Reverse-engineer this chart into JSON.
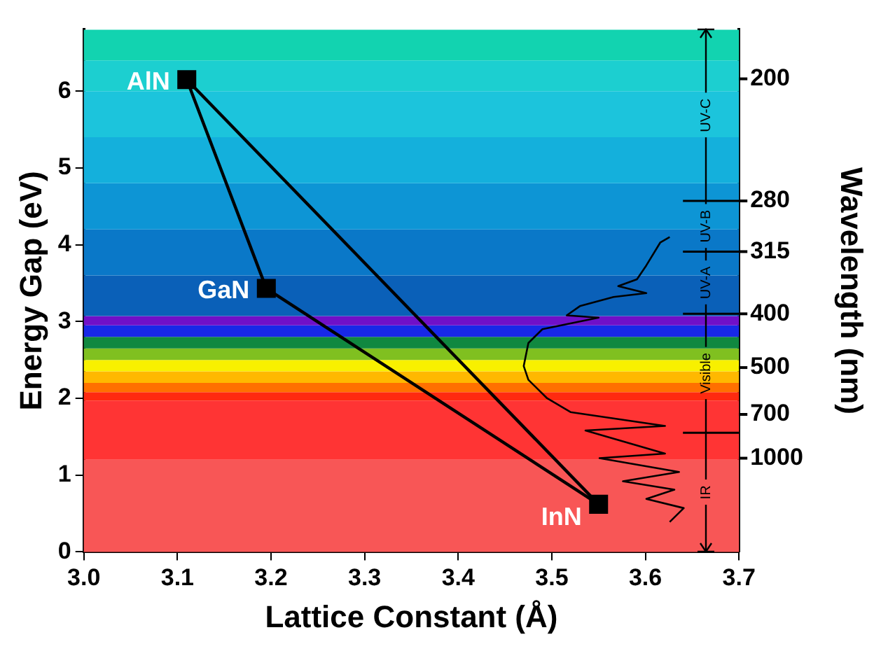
{
  "chart_data": {
    "type": "line",
    "xlabel": "Lattice Constant (Å)",
    "ylabel": "Energy Gap (eV)",
    "y2label": "Wavelength (nm)",
    "xlim": [
      3.0,
      3.7
    ],
    "xticks": [
      {
        "value": 3,
        "label": "3.0"
      },
      3.1,
      3.2,
      3.3,
      3.4,
      3.5,
      3.6,
      3.7
    ],
    "ylim": [
      0,
      6.8
    ],
    "yticks": [
      0,
      1,
      2,
      3,
      4,
      5,
      6
    ],
    "series": [
      {
        "type": "scatter",
        "color": "#000000",
        "marker": "square",
        "x": [
          3.11,
          3.195,
          3.55
        ],
        "values": [
          6.15,
          3.43,
          0.62
        ]
      },
      {
        "color": "#000000",
        "marker": "none",
        "x": [
          3.11,
          3.195,
          3.55
        ],
        "values": [
          6.15,
          3.43,
          0.62
        ]
      },
      {
        "color": "#000000",
        "marker": "none",
        "x": [
          3.11,
          3.55
        ],
        "values": [
          6.15,
          0.62
        ]
      },
      {
        "color": "#000000",
        "marker": "none",
        "x": [
          3.626,
          3.616,
          3.601,
          3.591,
          3.571,
          3.601,
          3.566,
          3.53,
          3.516,
          3.55,
          3.49,
          3.475,
          3.47,
          3.475,
          3.495,
          3.52,
          3.621,
          3.536,
          3.621,
          3.551,
          3.636,
          3.576,
          3.631,
          3.601,
          3.641,
          3.626
        ],
        "values": [
          4.1,
          4.03,
          3.73,
          3.55,
          3.46,
          3.37,
          3.32,
          3.2,
          3.08,
          3.05,
          2.9,
          2.72,
          2.42,
          2.24,
          2.0,
          1.82,
          1.64,
          1.58,
          1.28,
          1.22,
          1.04,
          0.92,
          0.81,
          0.69,
          0.57,
          0.39
        ]
      }
    ],
    "annotations": [
      {
        "text": "AlN",
        "x": 3.11,
        "y": 6.15
      },
      {
        "text": "GaN",
        "x": 3.195,
        "y": 3.43
      },
      {
        "text": "InN",
        "x": 3.55,
        "y": 0.62
      },
      {
        "text": "200",
        "x": 3.7,
        "y": 6.16
      },
      {
        "text": "280",
        "x": 3.7,
        "y": 4.57
      },
      {
        "text": "315",
        "x": 3.7,
        "y": 3.91
      },
      {
        "text": "400",
        "x": 3.7,
        "y": 3.1
      },
      {
        "text": "500",
        "x": 3.7,
        "y": 2.4
      },
      {
        "text": "700",
        "x": 3.7,
        "y": 1.79
      },
      {
        "text": "1000",
        "x": 3.7,
        "y": 1.22
      },
      {
        "text": "UV-C",
        "x": 3.665,
        "y": 4.57
      },
      {
        "text": "UV-B",
        "x": 3.665,
        "y": 3.91
      },
      {
        "text": "UV-A",
        "x": 3.665,
        "y": 3.1
      },
      {
        "text": "Visible",
        "x": 3.665,
        "y": 1.55
      },
      {
        "text": "IR",
        "x": 3.665,
        "y": 0
      }
    ],
    "ref_lines": [
      {
        "axis": "y",
        "value": 4.57
      },
      {
        "axis": "y",
        "value": 3.91
      },
      {
        "axis": "y",
        "value": 3.1
      },
      {
        "axis": "y",
        "value": 1.55
      }
    ],
    "bands": [
      {
        "axis": "y",
        "from": 0,
        "to": 1.2,
        "color": "#f85656"
      },
      {
        "axis": "y",
        "from": 1.2,
        "to": 1.97,
        "color": "#ff3434"
      },
      {
        "axis": "y",
        "from": 1.97,
        "to": 2.08,
        "color": "#ff2a10"
      },
      {
        "axis": "y",
        "from": 2.08,
        "to": 2.2,
        "color": "#ff7000"
      },
      {
        "axis": "y",
        "from": 2.2,
        "to": 2.35,
        "color": "#ffb800"
      },
      {
        "axis": "y",
        "from": 2.35,
        "to": 2.5,
        "color": "#f8f000"
      },
      {
        "axis": "y",
        "from": 2.5,
        "to": 2.65,
        "color": "#80c020"
      },
      {
        "axis": "y",
        "from": 2.65,
        "to": 2.8,
        "color": "#108840"
      },
      {
        "axis": "y",
        "from": 2.8,
        "to": 2.95,
        "color": "#1828e8"
      },
      {
        "axis": "y",
        "from": 2.95,
        "to": 3.07,
        "color": "#7010c8"
      },
      {
        "axis": "y",
        "from": 3.07,
        "to": 3.6,
        "color": "#0a60b8"
      },
      {
        "axis": "y",
        "from": 3.6,
        "to": 4.2,
        "color": "#0a78c8"
      },
      {
        "axis": "y",
        "from": 4.2,
        "to": 4.8,
        "color": "#0d95d5"
      },
      {
        "axis": "y",
        "from": 4.8,
        "to": 5.4,
        "color": "#14b0dc"
      },
      {
        "axis": "y",
        "from": 5.4,
        "to": 6.0,
        "color": "#1cc4dc"
      },
      {
        "axis": "y",
        "from": 6.0,
        "to": 6.4,
        "color": "#1ccfd0"
      },
      {
        "axis": "y",
        "from": 6.4,
        "to": 6.8,
        "color": "#12d3b0"
      }
    ],
    "grid": false,
    "legend": false
  }
}
